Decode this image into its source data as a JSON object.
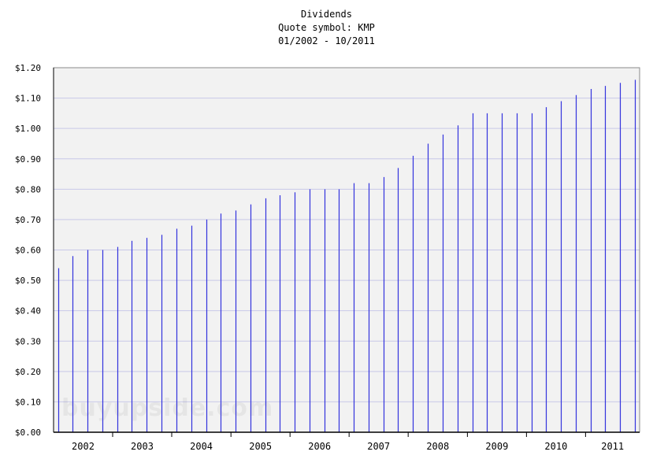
{
  "chart_data": {
    "type": "bar",
    "title": "Dividends",
    "subtitle": "Quote symbol: KMP",
    "date_range": "01/2002 - 10/2011",
    "xlabel": "",
    "ylabel": "",
    "ylim": [
      0,
      1.2
    ],
    "grid": true,
    "legend": "none",
    "y_ticks": [
      "$0.00",
      "$0.10",
      "$0.20",
      "$0.30",
      "$0.40",
      "$0.50",
      "$0.60",
      "$0.70",
      "$0.80",
      "$0.90",
      "$1.00",
      "$1.10",
      "$1.20"
    ],
    "x_ticks": [
      "2002",
      "2003",
      "2004",
      "2005",
      "2006",
      "2007",
      "2008",
      "2009",
      "2010",
      "2011"
    ],
    "x_range": [
      "2002-01-01",
      "2011-12-01"
    ],
    "x": [
      "2002-01-31",
      "2002-04-30",
      "2002-07-31",
      "2002-10-31",
      "2003-01-31",
      "2003-04-30",
      "2003-07-31",
      "2003-10-31",
      "2004-01-31",
      "2004-04-30",
      "2004-07-31",
      "2004-10-31",
      "2005-01-31",
      "2005-04-30",
      "2005-07-31",
      "2005-10-31",
      "2006-01-31",
      "2006-04-30",
      "2006-07-31",
      "2006-10-31",
      "2007-01-31",
      "2007-04-30",
      "2007-07-31",
      "2007-10-31",
      "2008-01-31",
      "2008-04-30",
      "2008-07-31",
      "2008-10-31",
      "2009-01-31",
      "2009-04-30",
      "2009-07-31",
      "2009-10-31",
      "2010-01-31",
      "2010-04-30",
      "2010-07-31",
      "2010-10-31",
      "2011-01-31",
      "2011-04-30",
      "2011-07-31",
      "2011-10-31"
    ],
    "values": [
      0.54,
      0.58,
      0.6,
      0.6,
      0.61,
      0.63,
      0.64,
      0.65,
      0.67,
      0.68,
      0.7,
      0.72,
      0.73,
      0.75,
      0.77,
      0.78,
      0.79,
      0.8,
      0.8,
      0.8,
      0.82,
      0.82,
      0.84,
      0.87,
      0.91,
      0.95,
      0.98,
      1.01,
      1.05,
      1.05,
      1.05,
      1.05,
      1.05,
      1.07,
      1.09,
      1.11,
      1.13,
      1.14,
      1.15,
      1.16
    ],
    "bar_color": "#3333dd",
    "grid_color": "#c8c8e8",
    "plot_background": "#f2f2f2",
    "watermark": "buyupside.com"
  }
}
